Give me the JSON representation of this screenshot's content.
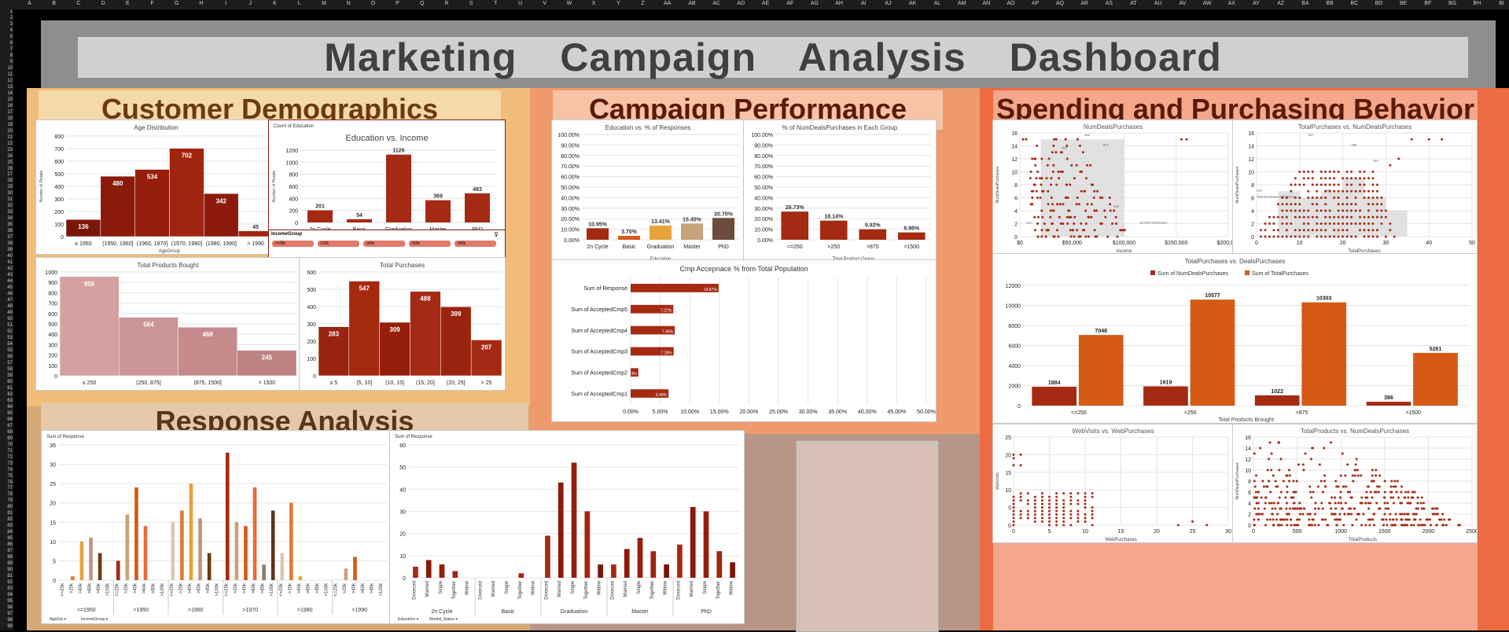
{
  "title": "Marketing Campaign Analysis Dashboard",
  "sections": {
    "demographics": "Customer Demographics",
    "campaign": "Campaign Performance",
    "spending": "Spending and Purchasing Behavior",
    "response": "Response Analysis"
  },
  "colors": {
    "dark_red": "#8b1a0a",
    "red": "#a52a14",
    "orange": "#d45a16",
    "tan": "#c8a27c",
    "pink": "#c98f8f",
    "brown_text": "#6b3a10",
    "dark_text": "#5a1a0a"
  },
  "chart_data": [
    {
      "id": "age",
      "type": "bar",
      "title": "Age Distribution",
      "xlabel": "AgeGroup",
      "ylabel": "Number of People",
      "categories": [
        "≤ 1950",
        "(1950, 1960]",
        "(1960, 1970]",
        "(1970, 1980]",
        "(1980, 1990]",
        "> 1990"
      ],
      "values": [
        136,
        480,
        534,
        702,
        342,
        45
      ],
      "ylim": [
        0,
        800
      ],
      "yticks": [
        0,
        100,
        200,
        300,
        400,
        500,
        600,
        700,
        800
      ]
    },
    {
      "id": "edu_income",
      "type": "bar",
      "title": "Education vs. Income",
      "ylabel": "Number of People",
      "categories": [
        "2n Cycle",
        "Basic",
        "Graduation",
        "Master",
        "PhD"
      ],
      "values": [
        201,
        54,
        1126,
        369,
        483
      ],
      "ylim": [
        0,
        1200
      ],
      "yticks": [
        0,
        200,
        400,
        600,
        800,
        1000,
        1200
      ],
      "field_button": "Count of Education"
    },
    {
      "id": "products",
      "type": "bar",
      "title": "Total Products Bought",
      "categories": [
        "≤ 250",
        "(250, 875]",
        "(875, 1500]",
        "> 1500"
      ],
      "values": [
        956,
        564,
        468,
        245
      ],
      "ylim": [
        0,
        1000
      ],
      "yticks": [
        0,
        100,
        200,
        300,
        400,
        500,
        600,
        700,
        800,
        900,
        1000
      ]
    },
    {
      "id": "purchases",
      "type": "bar",
      "title": "Total Purchases",
      "categories": [
        "≤ 5",
        "(5, 10]",
        "(10, 15]",
        "(15, 20]",
        "(20, 25]",
        "> 25"
      ],
      "values": [
        283,
        547,
        309,
        488,
        399,
        207
      ],
      "ylim": [
        0,
        600
      ],
      "yticks": [
        0,
        100,
        200,
        300,
        400,
        500,
        600
      ]
    },
    {
      "id": "edu_resp",
      "type": "bar",
      "title": "Education vs. % of Responses",
      "xlabel": "Education",
      "categories": [
        "2n Cycle",
        "Basic",
        "Graduation",
        "Master",
        "PhD"
      ],
      "values": [
        10.95,
        3.7,
        13.41,
        15.45,
        20.7
      ],
      "labels": [
        "10.95%",
        "3.70%",
        "13.41%",
        "15.45%",
        "20.70%"
      ],
      "ylim": [
        0,
        100
      ],
      "yticks": [
        "0.00%",
        "10.00%",
        "20.00%",
        "30.00%",
        "40.00%",
        "50.00%",
        "60.00%",
        "70.00%",
        "80.00%",
        "90.00%",
        "100.00%"
      ]
    },
    {
      "id": "deals_grp",
      "type": "bar",
      "title": "% of NumDealsPurchases in Each Group",
      "xlabel": "Total Product Group",
      "categories": [
        "<=250",
        ">250",
        ">875",
        ">1500"
      ],
      "values": [
        26.73,
        18.14,
        9.92,
        6.96
      ],
      "labels": [
        "26.73%",
        "18.14%",
        "9.92%",
        "6.96%"
      ],
      "ylim": [
        0,
        100
      ],
      "yticks": [
        "0.00%",
        "10.00%",
        "20.00%",
        "30.00%",
        "40.00%",
        "50.00%",
        "60.00%",
        "70.00%",
        "80.00%",
        "90.00%",
        "100.00%"
      ]
    },
    {
      "id": "cmp",
      "type": "bar",
      "title": "Cmp Accepnace % from Total Population",
      "categories": [
        "Sum of Response",
        "Sum of AcceptedCmp5",
        "Sum of AcceptedCmp4",
        "Sum of AcceptedCmp3",
        "Sum of AcceptedCmp2",
        "Sum of AcceptedCmp1"
      ],
      "values": [
        14.87,
        7.21,
        7.46,
        7.28,
        1.3,
        6.4
      ],
      "labels": [
        "14.87%",
        "7.21%",
        "7.46%",
        "7.28%",
        "1.3%",
        "6.40%"
      ],
      "xlim": [
        0,
        50
      ],
      "xticks": [
        "0.00%",
        "5.00%",
        "10.00%",
        "15.00%",
        "20.00%",
        "25.00%",
        "30.00%",
        "35.00%",
        "40.00%",
        "45.00%",
        "50.00%"
      ]
    },
    {
      "id": "deals_income",
      "type": "scatter",
      "title": "NumDealsPurchases",
      "xlabel": "Income",
      "ylabel": "NumDealsPurchases",
      "xticks": [
        "$0",
        "$50,000",
        "$100,000",
        "$150,000",
        "$200,000"
      ],
      "xlim": [
        0,
        200000
      ],
      "ylim": [
        0,
        16
      ],
      "yticks": [
        0,
        2,
        4,
        6,
        8,
        10,
        12,
        14,
        16
      ],
      "box_labels": [
        "494",
        "666",
        "623",
        "296",
        "ACOPE Distribution",
        "193"
      ]
    },
    {
      "id": "tp_deals",
      "type": "scatter",
      "title": "TotalPurchases vs. NumDealsPurchases",
      "xlabel": "TotalPurchases",
      "ylabel": "NumDealsPurchases",
      "xlim": [
        0,
        50
      ],
      "ylim": [
        0,
        16
      ],
      "xticks": [
        0,
        10,
        20,
        30,
        40,
        50
      ],
      "yticks": [
        0,
        2,
        4,
        6,
        8,
        10,
        12,
        14,
        16
      ],
      "box_labels": [
        "547",
        "488",
        "309",
        "399",
        "283",
        "Total Purchases Distribution"
      ]
    },
    {
      "id": "tp_vs_deals",
      "type": "bar",
      "title": "TotalPurchases vs. DealsPurchases",
      "xlabel": "Total Products Brought",
      "categories": [
        "<=250",
        ">250",
        ">875",
        ">1500"
      ],
      "series": [
        {
          "name": "Sum of NumDealsPurchases",
          "values": [
            1884,
            1919,
            1022,
            386
          ]
        },
        {
          "name": "Sum of TotalPurchases",
          "values": [
            7048,
            10577,
            10303,
            5261
          ]
        }
      ],
      "ylim": [
        0,
        12000
      ],
      "yticks": [
        0,
        2000,
        4000,
        6000,
        8000,
        10000,
        12000
      ]
    },
    {
      "id": "web",
      "type": "scatter",
      "title": "WebVisits vs. WebPurchases",
      "xlabel": "WebPurchases",
      "ylabel": "WebVisits",
      "xlim": [
        0,
        30
      ],
      "ylim": [
        0,
        25
      ],
      "xticks": [
        0,
        5,
        10,
        15,
        20,
        25,
        30
      ],
      "yticks": [
        0,
        5,
        10,
        15,
        20,
        25
      ]
    },
    {
      "id": "prod_deals",
      "type": "scatter",
      "title": "TotalProducts vs. NumDealsPurchases",
      "xlabel": "TotalProducts",
      "ylabel": "NumDealsPurchases",
      "xlim": [
        0,
        2500
      ],
      "ylim": [
        0,
        16
      ],
      "xticks": [
        0,
        500,
        1000,
        1500,
        2000,
        2500
      ],
      "yticks": [
        0,
        2,
        4,
        6,
        8,
        10,
        12,
        14,
        16
      ]
    },
    {
      "id": "resp_age",
      "type": "bar",
      "title": "",
      "field_button": "Sum of Response",
      "groups": [
        "<=1950",
        ">1950",
        ">1960",
        ">1970",
        ">1980",
        ">1990"
      ],
      "subcats": [
        "<=20k",
        ">20k",
        ">40k",
        ">60k",
        ">80k",
        ">100k"
      ],
      "values": [
        [
          0,
          1,
          10,
          11,
          7,
          0
        ],
        [
          5,
          17,
          24,
          14,
          0,
          0
        ],
        [
          15,
          18,
          25,
          16,
          7,
          0
        ],
        [
          33,
          15,
          14,
          24,
          4,
          18
        ],
        [
          7,
          20,
          1,
          0,
          0,
          0
        ],
        [
          0,
          3,
          6,
          0,
          0,
          0
        ]
      ],
      "ylim": [
        0,
        35
      ],
      "yticks": [
        0,
        5,
        10,
        15,
        20,
        25,
        30,
        35
      ],
      "filters": [
        "AgeGrp",
        "IncomeGroup"
      ]
    },
    {
      "id": "resp_edu",
      "type": "bar",
      "title": "",
      "field_button": "Sum of Response",
      "groups": [
        "2n Cycle",
        "Basic",
        "Graduation",
        "Master",
        "PhD"
      ],
      "subcats": [
        "Divorced",
        "Married",
        "Single",
        "Together",
        "Widow"
      ],
      "values": [
        [
          5,
          8,
          6,
          3,
          0
        ],
        [
          0,
          0,
          0,
          2,
          0
        ],
        [
          19,
          43,
          52,
          30,
          6
        ],
        [
          6,
          13,
          18,
          12,
          6
        ],
        [
          15,
          32,
          30,
          12,
          7
        ]
      ],
      "ylim": [
        0,
        60
      ],
      "yticks": [
        0,
        10,
        20,
        30,
        40,
        50,
        60
      ],
      "filters": [
        "Education",
        "Marital_Status"
      ]
    }
  ],
  "income_slicer": {
    "header": "IncomeGroup",
    "items": [
      "<=20k",
      ">20k",
      ">40k",
      ">60k",
      ">80k"
    ]
  }
}
